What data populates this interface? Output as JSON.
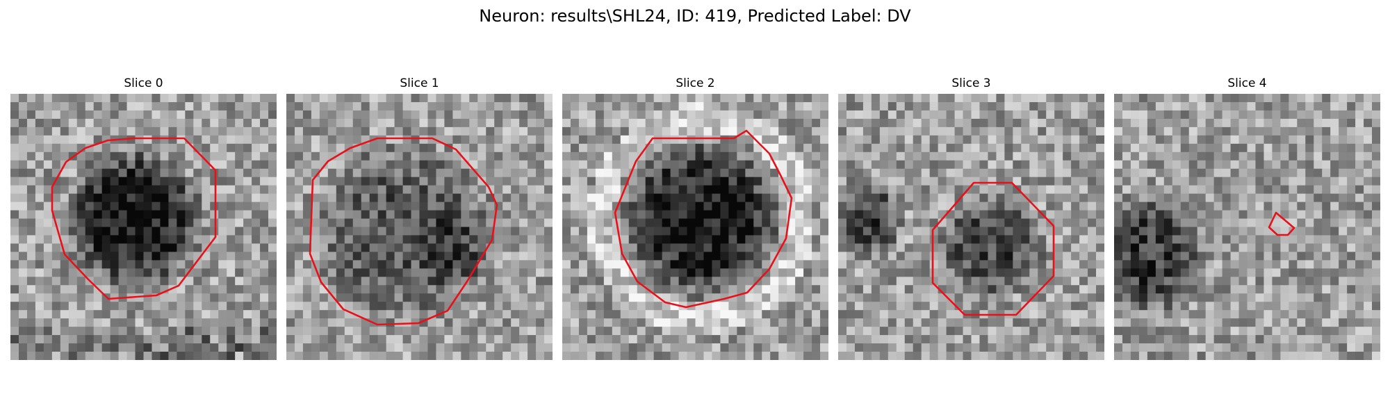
{
  "figure": {
    "title": "Neuron: results\\SHL24, ID: 419, Predicted Label: DV"
  },
  "colors": {
    "contour": "#e8111a",
    "background": "#ffffff"
  },
  "panels": [
    {
      "title": "Slice 0"
    },
    {
      "title": "Slice 1"
    },
    {
      "title": "Slice 2"
    },
    {
      "title": "Slice 3"
    },
    {
      "title": "Slice 4"
    }
  ]
}
